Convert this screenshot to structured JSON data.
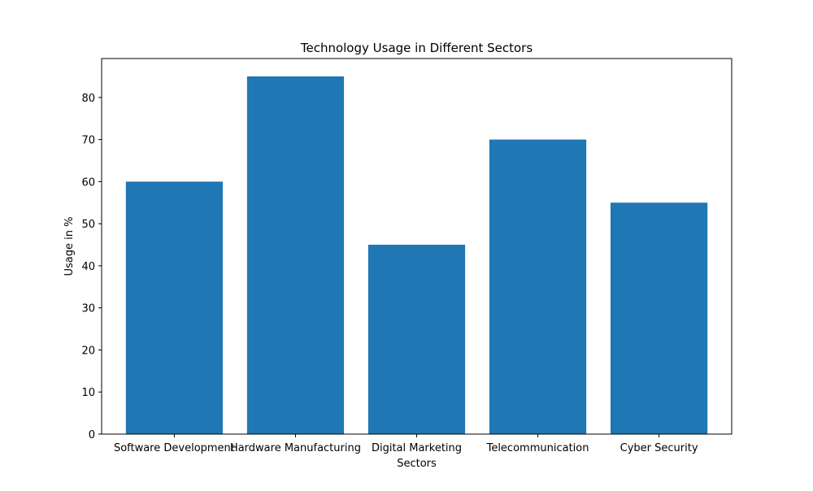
{
  "chart_data": {
    "type": "bar",
    "title": "Technology Usage in Different Sectors",
    "xlabel": "Sectors",
    "ylabel": "Usage in %",
    "categories": [
      "Software Development",
      "Hardware Manufacturing",
      "Digital Marketing",
      "Telecommunication",
      "Cyber Security"
    ],
    "values": [
      60,
      85,
      45,
      70,
      55
    ],
    "ylim": [
      0,
      89.25
    ],
    "yticks": [
      0,
      10,
      20,
      30,
      40,
      50,
      60,
      70,
      80
    ],
    "grid": false,
    "legend": "none",
    "bar_color": "#1f77b4"
  }
}
